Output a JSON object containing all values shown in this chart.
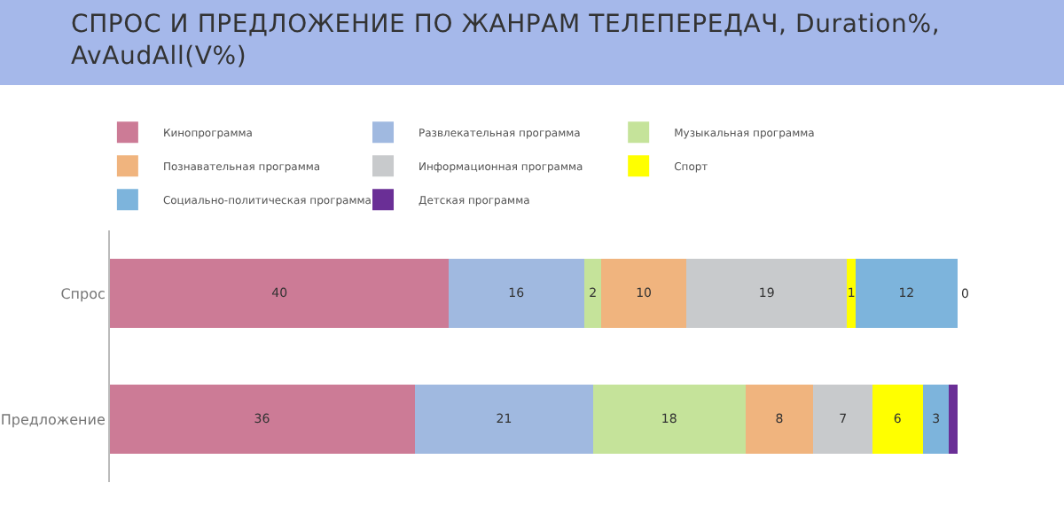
{
  "chart_data": {
    "type": "bar",
    "orientation": "horizontal",
    "stacked": true,
    "title": "СПРОС И ПРЕДЛОЖЕНИЕ ПО ЖАНРАМ ТЕЛЕПЕРЕДАЧ, Duration%, AvAudAll(V%)",
    "categories": [
      "Спрос",
      "Предложение"
    ],
    "series": [
      {
        "name": "Кинопрограмма",
        "color": "#cc7b96",
        "values": [
          40,
          36
        ],
        "value_labels": [
          "40",
          "36"
        ]
      },
      {
        "name": "Развлекательная программа",
        "color": "#a0b9e0",
        "values": [
          16,
          21
        ],
        "value_labels": [
          "16",
          "21"
        ]
      },
      {
        "name": "Музыкальная программа",
        "color": "#c5e39a",
        "values": [
          2,
          18
        ],
        "value_labels": [
          "2",
          "18"
        ]
      },
      {
        "name": "Познавательная программа",
        "color": "#f0b47e",
        "values": [
          10,
          8
        ],
        "value_labels": [
          "10",
          "8"
        ]
      },
      {
        "name": "Информационная программа",
        "color": "#c8cacc",
        "values": [
          19,
          7
        ],
        "value_labels": [
          "19",
          "7"
        ]
      },
      {
        "name": "Спорт",
        "color": "#ffff00",
        "values": [
          1,
          6
        ],
        "value_labels": [
          "1",
          "6"
        ]
      },
      {
        "name": "Социально-политическая программа",
        "color": "#7db4dc",
        "values": [
          12,
          3
        ],
        "value_labels": [
          "12",
          "3"
        ]
      },
      {
        "name": "Детская программа",
        "color": "#6a2f96",
        "values": [
          0,
          1
        ],
        "value_labels": [
          "0",
          null
        ]
      }
    ],
    "legend": "top",
    "tick_labels": "y"
  }
}
